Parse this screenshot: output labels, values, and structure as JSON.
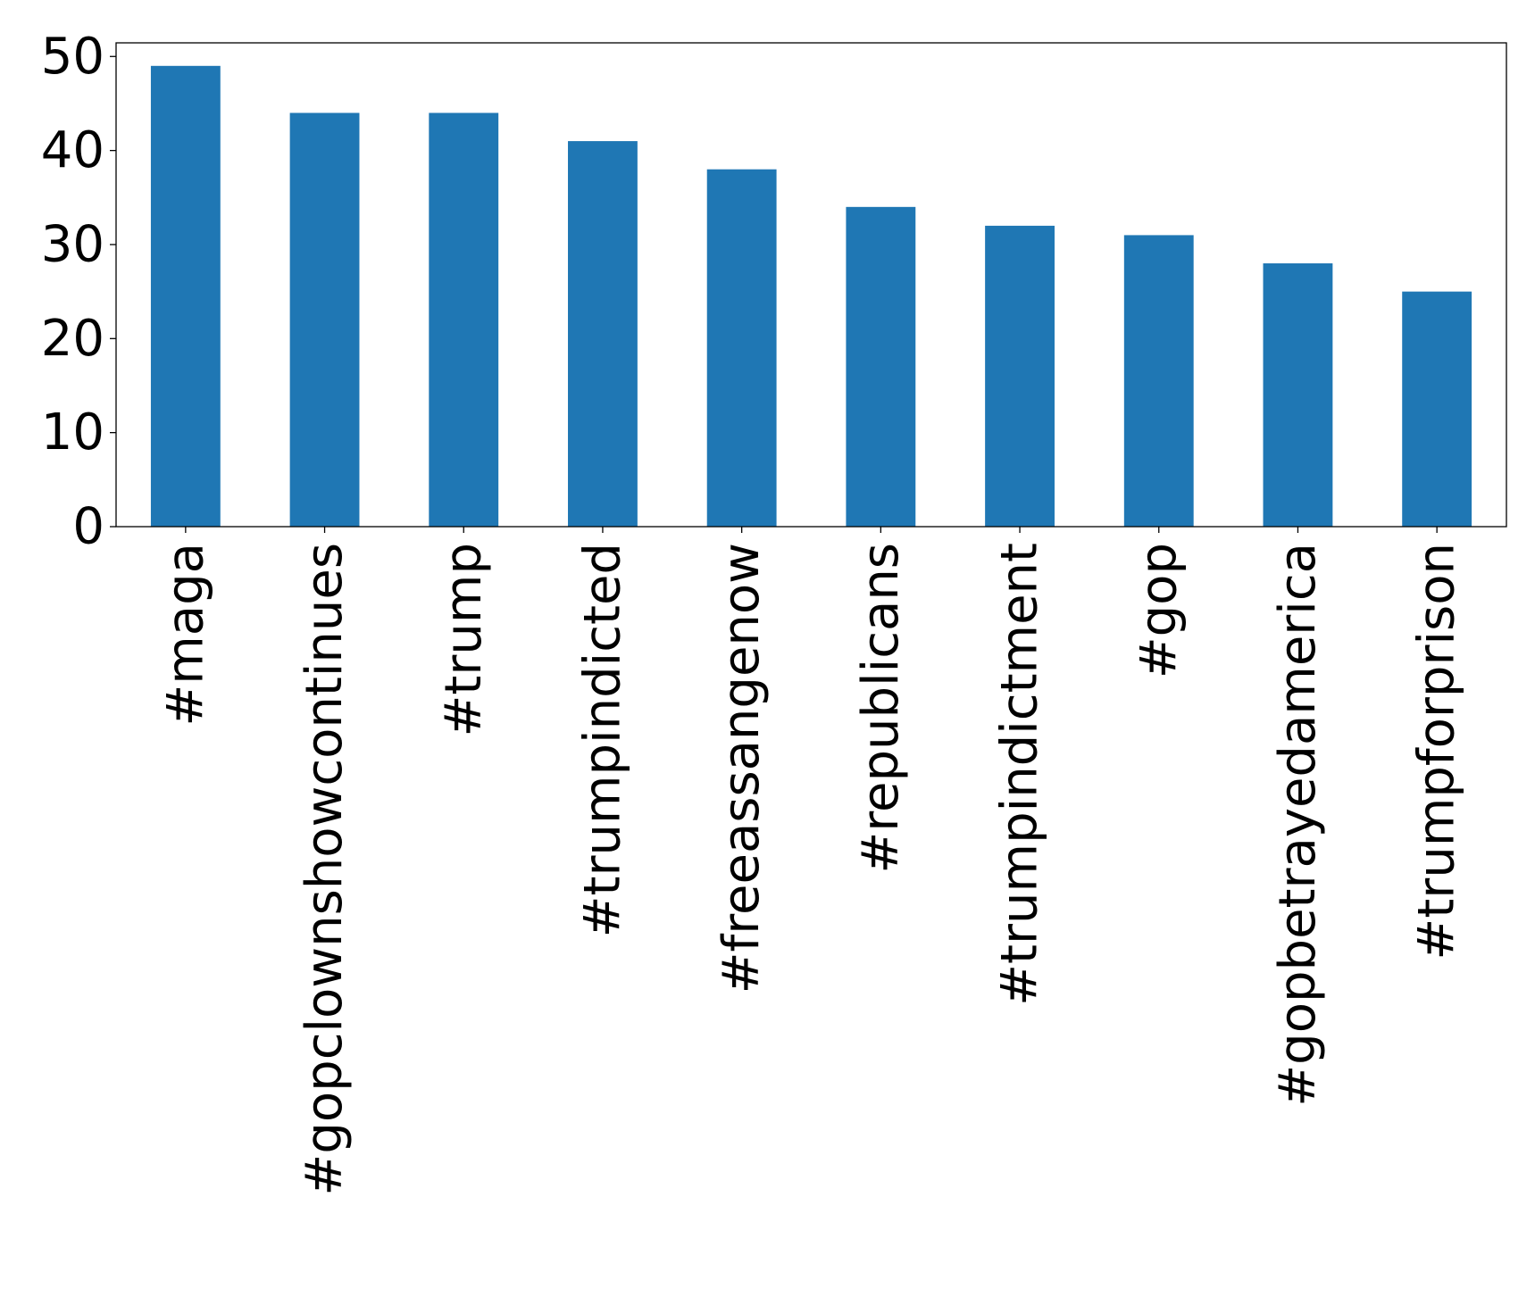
{
  "chart_data": {
    "type": "bar",
    "title": "",
    "xlabel": "",
    "ylabel": "",
    "categories": [
      "#maga",
      "#gopclownshowcontinues",
      "#trump",
      "#trumpindicted",
      "#freeassangenow",
      "#republicans",
      "#trumpindictment",
      "#gop",
      "#gopbetrayedamerica",
      "#trumpforprison"
    ],
    "values": [
      49,
      44,
      44,
      41,
      38,
      34,
      32,
      31,
      28,
      25
    ],
    "ylim": [
      0,
      51.45
    ],
    "yticks": [
      0,
      10,
      20,
      30,
      40,
      50
    ],
    "bar_color": "#1f77b4",
    "grid": false,
    "legend": "none"
  }
}
